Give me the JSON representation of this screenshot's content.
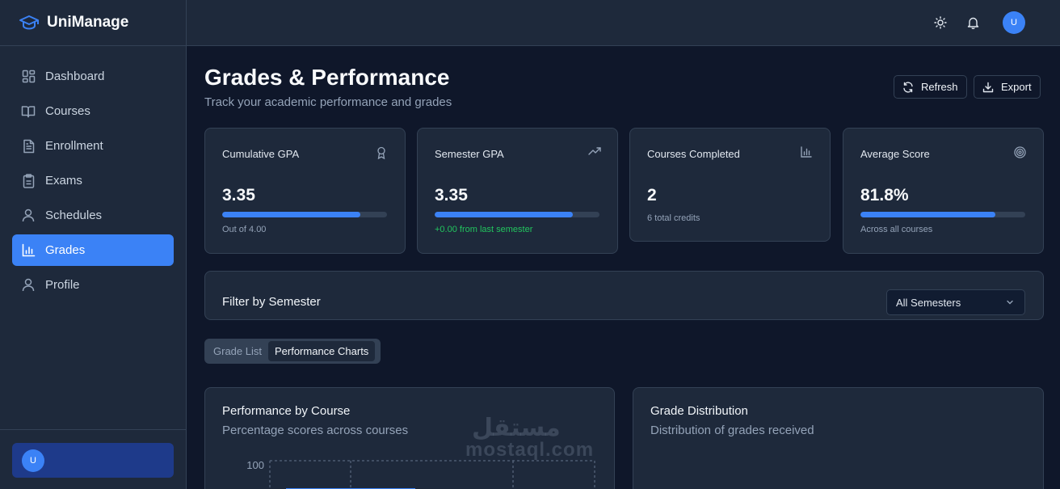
{
  "app": {
    "name": "UniManage"
  },
  "sidebar": {
    "items": [
      {
        "label": "Dashboard",
        "icon": "dashboard-icon"
      },
      {
        "label": "Courses",
        "icon": "book-icon"
      },
      {
        "label": "Enrollment",
        "icon": "document-icon"
      },
      {
        "label": "Exams",
        "icon": "clipboard-icon"
      },
      {
        "label": "Schedules",
        "icon": "user-icon"
      },
      {
        "label": "Grades",
        "icon": "bar-chart-icon",
        "active": true
      },
      {
        "label": "Profile",
        "icon": "user-icon"
      }
    ],
    "user_initial": "U"
  },
  "topbar": {
    "user_initial": "U"
  },
  "page": {
    "title": "Grades & Performance",
    "subtitle": "Track your academic performance and grades",
    "refresh_label": "Refresh",
    "export_label": "Export"
  },
  "stats": [
    {
      "title": "Cumulative GPA",
      "value": "3.35",
      "progress": 0.84,
      "note": "Out of 4.00",
      "icon": "award-icon"
    },
    {
      "title": "Semester GPA",
      "value": "3.35",
      "progress": 0.84,
      "note": "+0.00 from last semester",
      "icon": "trending-up-icon"
    },
    {
      "title": "Courses Completed",
      "value": "2",
      "note": "6 total credits",
      "icon": "bar-chart-icon"
    },
    {
      "title": "Average Score",
      "value": "81.8%",
      "progress": 0.818,
      "note": "Across all courses",
      "icon": "target-icon"
    }
  ],
  "filter": {
    "title": "Filter by Semester",
    "selected": "All Semesters"
  },
  "tabs": [
    {
      "label": "Grade List",
      "active": false
    },
    {
      "label": "Performance Charts",
      "active": true
    }
  ],
  "charts": {
    "performance": {
      "title": "Performance by Course",
      "subtitle": "Percentage scores across courses",
      "y_tick_top": "100"
    },
    "distribution": {
      "title": "Grade Distribution",
      "subtitle": "Distribution of grades received"
    }
  },
  "watermark": {
    "arabic": "مستقل",
    "latin": "mostaql.com"
  },
  "colors": {
    "accent": "#3b82f6",
    "positive": "#22c55e",
    "background": "#0f172a",
    "surface": "#1e293b"
  }
}
